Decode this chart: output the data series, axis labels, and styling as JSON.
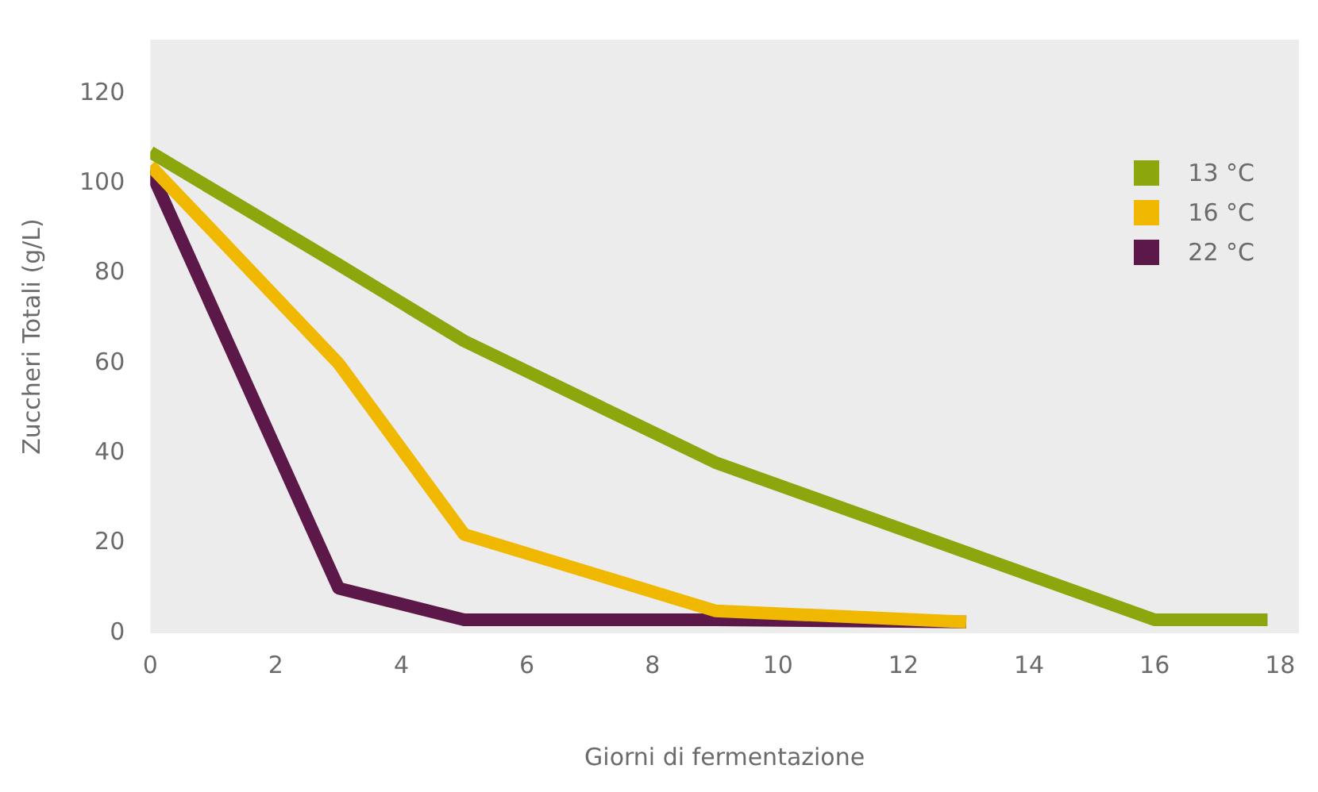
{
  "chart_data": {
    "type": "line",
    "xlabel": "Giorni di fermentazione",
    "ylabel": "Zuccheri Totali (g/L)",
    "xlim": [
      0,
      18.3
    ],
    "xticks": [
      0,
      2,
      4,
      6,
      8,
      10,
      12,
      14,
      16,
      18
    ],
    "ylim": [
      0,
      132
    ],
    "yticks": [
      0,
      20,
      40,
      60,
      80,
      100,
      120
    ],
    "grid": false,
    "legend": "top right",
    "marker": "none",
    "line_style": "solid",
    "series": [
      {
        "name": "13 °C",
        "color": "#8ca60e",
        "x": [
          0,
          3,
          5,
          9,
          16,
          17.8
        ],
        "values": [
          107,
          82,
          65,
          38,
          3,
          3
        ]
      },
      {
        "name": "16 °C",
        "color": "#f0b800",
        "x": [
          0,
          3,
          5,
          9,
          13
        ],
        "values": [
          104,
          60,
          22,
          5,
          2.5
        ]
      },
      {
        "name": "22 °C",
        "color": "#5c1848",
        "x": [
          0,
          3,
          5,
          9,
          13
        ],
        "values": [
          103,
          10,
          3,
          3,
          2.5
        ]
      }
    ]
  }
}
